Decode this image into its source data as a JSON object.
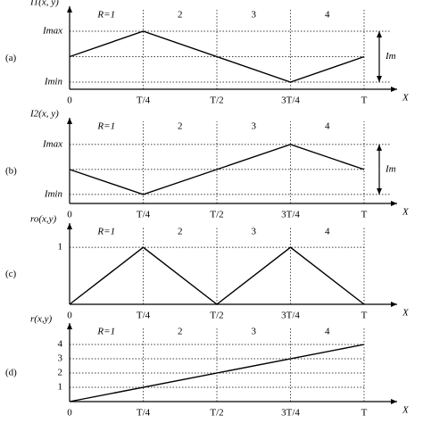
{
  "chart_data": [
    {
      "type": "line",
      "panel": "(a)",
      "ylabel": "I1(x, y)",
      "xlabel": "X",
      "regions": [
        "R=1",
        "2",
        "3",
        "4"
      ],
      "annotation": "Im",
      "x": [
        0,
        0.25,
        0.75,
        1
      ],
      "values": [
        0.5,
        1,
        0,
        0.5
      ],
      "color": "#000000",
      "xlim": [
        0,
        1
      ],
      "xticks": [
        {
          "value": 0,
          "label": "0"
        },
        {
          "value": 0.25,
          "label": "T/4"
        },
        {
          "value": 0.5,
          "label": "T/2"
        },
        {
          "value": 0.75,
          "label": "3T/4"
        },
        {
          "value": 1,
          "label": "T"
        }
      ],
      "ylim": [
        -0.14,
        1.35
      ],
      "yticks": [
        {
          "value": 0,
          "label": "Imin"
        },
        {
          "value": 1,
          "label": "Imax"
        }
      ]
    },
    {
      "type": "line",
      "panel": "(b)",
      "ylabel": "I2(x, y)",
      "xlabel": "X",
      "regions": [
        "R=1",
        "2",
        "3",
        "4"
      ],
      "annotation": "Im",
      "x": [
        0,
        0.25,
        0.75,
        1
      ],
      "values": [
        0.5,
        0,
        1,
        0.5
      ],
      "color": "#000000",
      "xlim": [
        0,
        1
      ],
      "xticks": [
        {
          "value": 0,
          "label": "0"
        },
        {
          "value": 0.25,
          "label": "T/4"
        },
        {
          "value": 0.5,
          "label": "T/2"
        },
        {
          "value": 0.75,
          "label": "3T/4"
        },
        {
          "value": 1,
          "label": "T"
        }
      ],
      "ylim": [
        -0.18,
        1.39
      ],
      "yticks": [
        {
          "value": 0,
          "label": "Imin"
        },
        {
          "value": 1,
          "label": "Imax"
        }
      ]
    },
    {
      "type": "line",
      "panel": "(c)",
      "ylabel": "ro(x,y)",
      "xlabel": "X",
      "regions": [
        "R=1",
        "2",
        "3",
        "4"
      ],
      "x": [
        0,
        0.25,
        0.5,
        0.75,
        1
      ],
      "values": [
        0,
        1,
        0,
        1,
        0
      ],
      "color": "#000000",
      "xlim": [
        0,
        1
      ],
      "xticks": [
        {
          "value": 0,
          "label": "0"
        },
        {
          "value": 0.25,
          "label": "T/4"
        },
        {
          "value": 0.5,
          "label": "T/2"
        },
        {
          "value": 0.75,
          "label": "3T/4"
        },
        {
          "value": 1,
          "label": "T"
        }
      ],
      "ylim": [
        0,
        1.3
      ],
      "yticks": [
        1
      ]
    },
    {
      "type": "line",
      "panel": "(d)",
      "ylabel": "r(x,y)",
      "xlabel": "X",
      "regions": [
        "R=1",
        "2",
        "3",
        "4"
      ],
      "x": [
        0,
        1
      ],
      "values": [
        0,
        4
      ],
      "color": "#000000",
      "xlim": [
        0,
        1
      ],
      "xticks": [
        {
          "value": 0,
          "label": "0"
        },
        {
          "value": 0.25,
          "label": "T/4"
        },
        {
          "value": 0.5,
          "label": "T/2"
        },
        {
          "value": 0.75,
          "label": "3T/4"
        },
        {
          "value": 1,
          "label": "T"
        }
      ],
      "ylim": [
        0,
        5
      ],
      "yticks": [
        1,
        2,
        3,
        4
      ]
    }
  ]
}
